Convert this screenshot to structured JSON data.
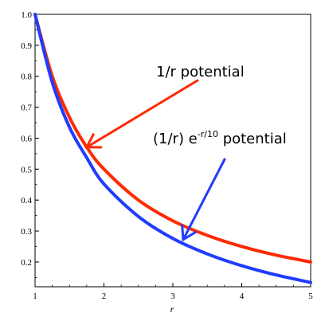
{
  "chart_data": {
    "type": "line",
    "title": "",
    "xlabel": "r",
    "ylabel": "",
    "xlim": [
      1,
      5
    ],
    "ylim": [
      0.12,
      1.0
    ],
    "grid": false,
    "x_ticks": [
      "1",
      "2",
      "3",
      "4",
      "5"
    ],
    "y_ticks": [
      "0.2",
      "0.3",
      "0.4",
      "0.5",
      "0.6",
      "0.7",
      "0.8",
      "0.9",
      "1.0"
    ],
    "x": [
      1.0,
      1.25,
      1.5,
      1.75,
      2.0,
      2.5,
      3.0,
      3.5,
      4.0,
      4.5,
      5.0
    ],
    "series": [
      {
        "values": [
          1.0,
          0.8,
          0.667,
          0.571,
          0.5,
          0.4,
          0.333,
          0.286,
          0.25,
          0.222,
          0.2
        ],
        "color": "#ff2a00"
      },
      {
        "values": [
          1.0,
          0.78,
          0.635,
          0.537,
          0.452,
          0.347,
          0.276,
          0.226,
          0.188,
          0.158,
          0.134
        ],
        "color": "#1f3cff"
      }
    ],
    "annotations": [
      {
        "text": "1/r potential",
        "arrow_color": "#ff2a00",
        "points_to": [
          1.75,
          0.571
        ]
      },
      {
        "text_main": "(1/r) e",
        "text_sup": "-r/10",
        "text_tail": " potential",
        "arrow_color": "#1f3cff",
        "points_to": [
          3.15,
          0.262
        ]
      }
    ]
  }
}
